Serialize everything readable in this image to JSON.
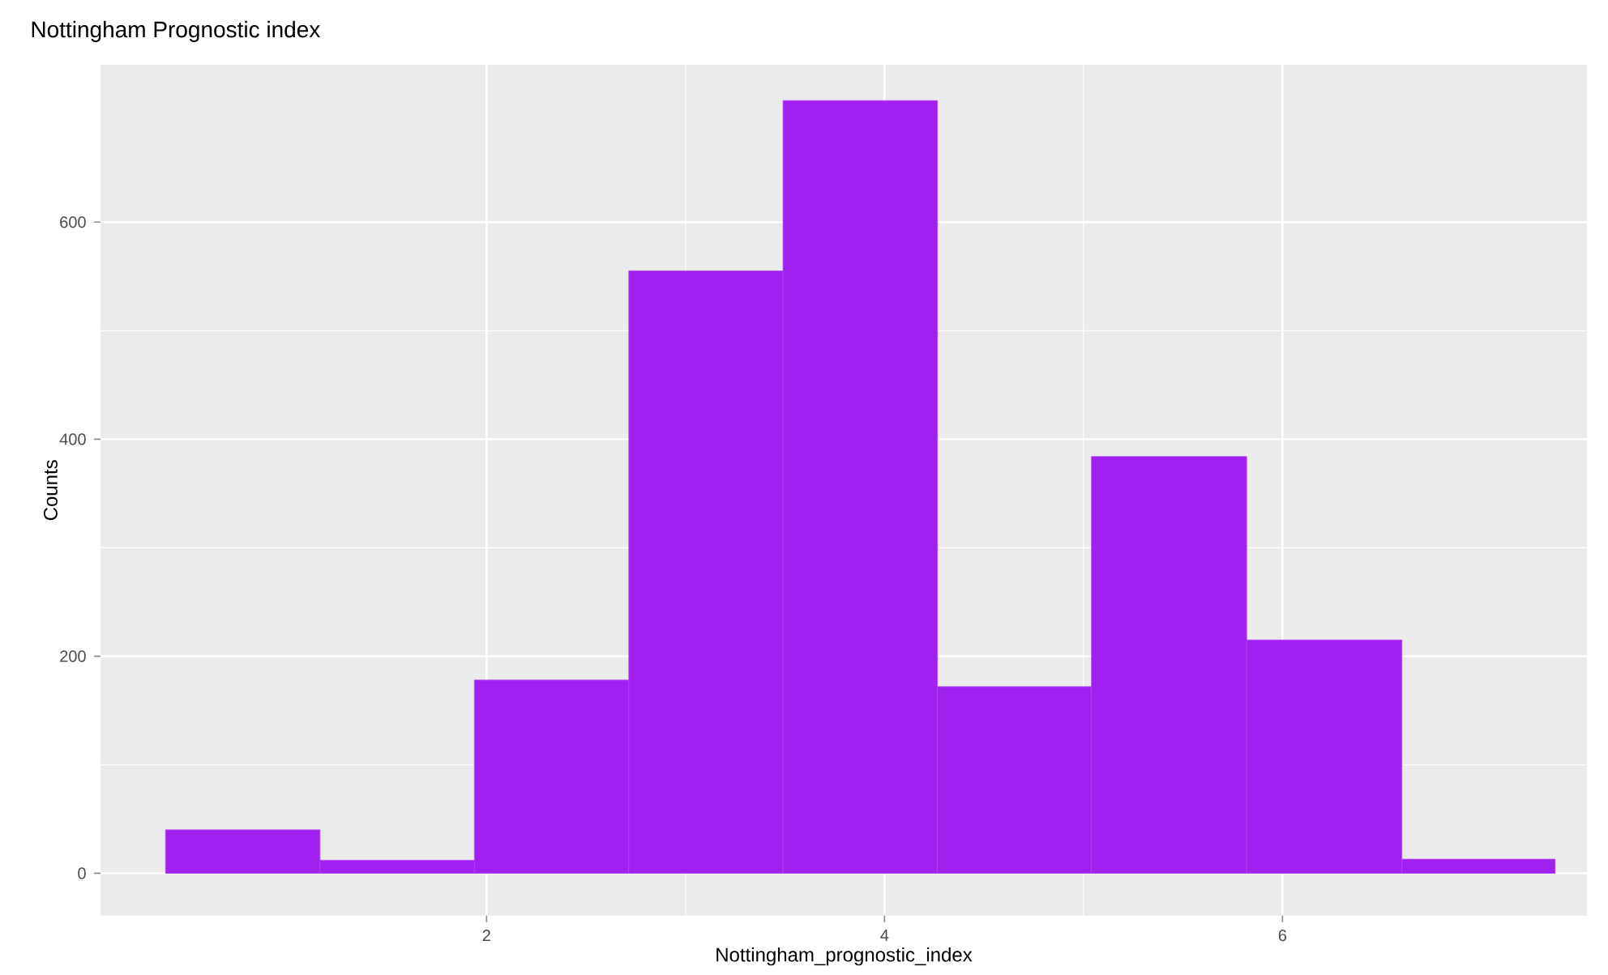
{
  "chart_data": {
    "type": "histogram",
    "title": "Nottingham Prognostic index",
    "xlabel": "Nottingham_prognostic_index",
    "ylabel": "Counts",
    "bins": [
      0.387,
      1.163,
      1.939,
      2.715,
      3.49,
      4.266,
      5.04,
      5.82,
      6.6,
      7.37
    ],
    "values": [
      40,
      12,
      178,
      555,
      712,
      172,
      384,
      215,
      13
    ],
    "color": "#a020f0",
    "xlim": [
      0.06,
      7.53
    ],
    "ylim": [
      -39,
      745
    ],
    "xticks": [
      2,
      4,
      6
    ],
    "yticks": [
      0,
      200,
      400,
      600
    ],
    "grid": true
  }
}
